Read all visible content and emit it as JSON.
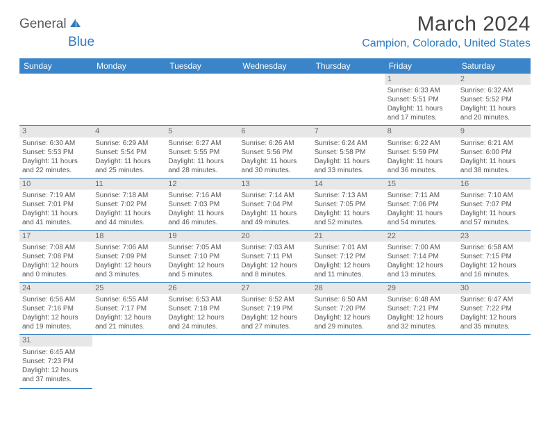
{
  "logo": {
    "part1": "General",
    "part2": "Blue"
  },
  "title": "March 2024",
  "location": "Campion, Colorado, United States",
  "day_headers": [
    "Sunday",
    "Monday",
    "Tuesday",
    "Wednesday",
    "Thursday",
    "Friday",
    "Saturday"
  ],
  "colors": {
    "header_bg": "#3a85c9",
    "accent": "#2f7bbf",
    "daynum_bg": "#e7e7e7",
    "text": "#555555"
  },
  "weeks": [
    [
      null,
      null,
      null,
      null,
      null,
      {
        "n": "1",
        "sr": "6:33 AM",
        "ss": "5:51 PM",
        "dl": "11 hours and 17 minutes."
      },
      {
        "n": "2",
        "sr": "6:32 AM",
        "ss": "5:52 PM",
        "dl": "11 hours and 20 minutes."
      }
    ],
    [
      {
        "n": "3",
        "sr": "6:30 AM",
        "ss": "5:53 PM",
        "dl": "11 hours and 22 minutes."
      },
      {
        "n": "4",
        "sr": "6:29 AM",
        "ss": "5:54 PM",
        "dl": "11 hours and 25 minutes."
      },
      {
        "n": "5",
        "sr": "6:27 AM",
        "ss": "5:55 PM",
        "dl": "11 hours and 28 minutes."
      },
      {
        "n": "6",
        "sr": "6:26 AM",
        "ss": "5:56 PM",
        "dl": "11 hours and 30 minutes."
      },
      {
        "n": "7",
        "sr": "6:24 AM",
        "ss": "5:58 PM",
        "dl": "11 hours and 33 minutes."
      },
      {
        "n": "8",
        "sr": "6:22 AM",
        "ss": "5:59 PM",
        "dl": "11 hours and 36 minutes."
      },
      {
        "n": "9",
        "sr": "6:21 AM",
        "ss": "6:00 PM",
        "dl": "11 hours and 38 minutes."
      }
    ],
    [
      {
        "n": "10",
        "sr": "7:19 AM",
        "ss": "7:01 PM",
        "dl": "11 hours and 41 minutes."
      },
      {
        "n": "11",
        "sr": "7:18 AM",
        "ss": "7:02 PM",
        "dl": "11 hours and 44 minutes."
      },
      {
        "n": "12",
        "sr": "7:16 AM",
        "ss": "7:03 PM",
        "dl": "11 hours and 46 minutes."
      },
      {
        "n": "13",
        "sr": "7:14 AM",
        "ss": "7:04 PM",
        "dl": "11 hours and 49 minutes."
      },
      {
        "n": "14",
        "sr": "7:13 AM",
        "ss": "7:05 PM",
        "dl": "11 hours and 52 minutes."
      },
      {
        "n": "15",
        "sr": "7:11 AM",
        "ss": "7:06 PM",
        "dl": "11 hours and 54 minutes."
      },
      {
        "n": "16",
        "sr": "7:10 AM",
        "ss": "7:07 PM",
        "dl": "11 hours and 57 minutes."
      }
    ],
    [
      {
        "n": "17",
        "sr": "7:08 AM",
        "ss": "7:08 PM",
        "dl": "12 hours and 0 minutes."
      },
      {
        "n": "18",
        "sr": "7:06 AM",
        "ss": "7:09 PM",
        "dl": "12 hours and 3 minutes."
      },
      {
        "n": "19",
        "sr": "7:05 AM",
        "ss": "7:10 PM",
        "dl": "12 hours and 5 minutes."
      },
      {
        "n": "20",
        "sr": "7:03 AM",
        "ss": "7:11 PM",
        "dl": "12 hours and 8 minutes."
      },
      {
        "n": "21",
        "sr": "7:01 AM",
        "ss": "7:12 PM",
        "dl": "12 hours and 11 minutes."
      },
      {
        "n": "22",
        "sr": "7:00 AM",
        "ss": "7:14 PM",
        "dl": "12 hours and 13 minutes."
      },
      {
        "n": "23",
        "sr": "6:58 AM",
        "ss": "7:15 PM",
        "dl": "12 hours and 16 minutes."
      }
    ],
    [
      {
        "n": "24",
        "sr": "6:56 AM",
        "ss": "7:16 PM",
        "dl": "12 hours and 19 minutes."
      },
      {
        "n": "25",
        "sr": "6:55 AM",
        "ss": "7:17 PM",
        "dl": "12 hours and 21 minutes."
      },
      {
        "n": "26",
        "sr": "6:53 AM",
        "ss": "7:18 PM",
        "dl": "12 hours and 24 minutes."
      },
      {
        "n": "27",
        "sr": "6:52 AM",
        "ss": "7:19 PM",
        "dl": "12 hours and 27 minutes."
      },
      {
        "n": "28",
        "sr": "6:50 AM",
        "ss": "7:20 PM",
        "dl": "12 hours and 29 minutes."
      },
      {
        "n": "29",
        "sr": "6:48 AM",
        "ss": "7:21 PM",
        "dl": "12 hours and 32 minutes."
      },
      {
        "n": "30",
        "sr": "6:47 AM",
        "ss": "7:22 PM",
        "dl": "12 hours and 35 minutes."
      }
    ],
    [
      {
        "n": "31",
        "sr": "6:45 AM",
        "ss": "7:23 PM",
        "dl": "12 hours and 37 minutes."
      },
      null,
      null,
      null,
      null,
      null,
      null
    ]
  ],
  "labels": {
    "sunrise": "Sunrise: ",
    "sunset": "Sunset: ",
    "daylight": "Daylight: "
  }
}
